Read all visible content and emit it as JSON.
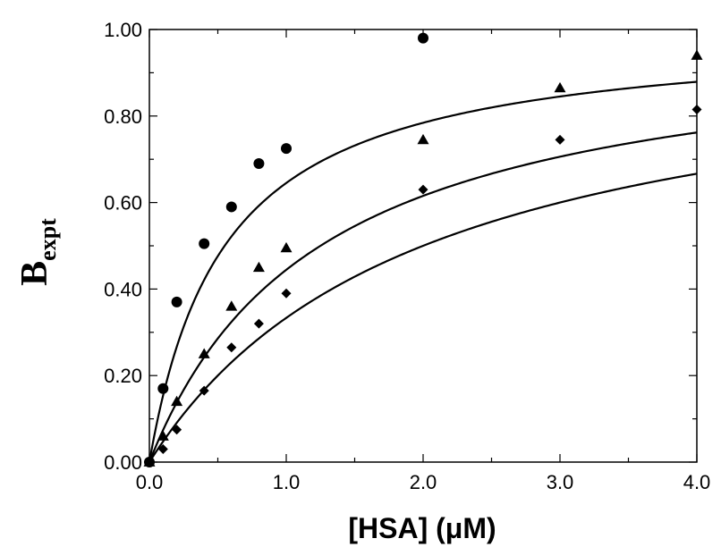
{
  "chart_data": {
    "type": "scatter",
    "xlabel": "[HSA] (μM)",
    "ylabel_main": "B",
    "ylabel_sub": "expt",
    "xlim": [
      0,
      4
    ],
    "ylim": [
      0,
      1
    ],
    "x_ticks": [
      0,
      1,
      2,
      3,
      4
    ],
    "x_tick_labels": [
      "0.0",
      "1.0",
      "2.0",
      "3.0",
      "4.0"
    ],
    "y_ticks": [
      0,
      0.2,
      0.4,
      0.6,
      0.8,
      1.0
    ],
    "y_tick_labels": [
      "0.00",
      "0.20",
      "0.40",
      "0.60",
      "0.80",
      "1.00"
    ],
    "grid": false,
    "series": [
      {
        "marker": "circle",
        "points": [
          [
            0,
            0
          ],
          [
            0.1,
            0.17
          ],
          [
            0.2,
            0.37
          ],
          [
            0.4,
            0.505
          ],
          [
            0.6,
            0.59
          ],
          [
            0.8,
            0.69
          ],
          [
            1.0,
            0.725
          ],
          [
            2.0,
            0.98
          ]
        ],
        "fit_kd": 0.55
      },
      {
        "marker": "triangle",
        "points": [
          [
            0,
            0
          ],
          [
            0.1,
            0.06
          ],
          [
            0.2,
            0.14
          ],
          [
            0.4,
            0.25
          ],
          [
            0.6,
            0.36
          ],
          [
            0.8,
            0.45
          ],
          [
            1.0,
            0.495
          ],
          [
            2.0,
            0.745
          ],
          [
            3.0,
            0.865
          ],
          [
            4.0,
            0.94
          ]
        ],
        "fit_kd": 1.25
      },
      {
        "marker": "diamond",
        "points": [
          [
            0,
            0
          ],
          [
            0.1,
            0.03
          ],
          [
            0.2,
            0.075
          ],
          [
            0.4,
            0.165
          ],
          [
            0.6,
            0.265
          ],
          [
            0.8,
            0.32
          ],
          [
            1.0,
            0.39
          ],
          [
            2.0,
            0.63
          ],
          [
            3.0,
            0.745
          ],
          [
            4.0,
            0.815
          ]
        ],
        "fit_kd": 2.0
      }
    ]
  }
}
